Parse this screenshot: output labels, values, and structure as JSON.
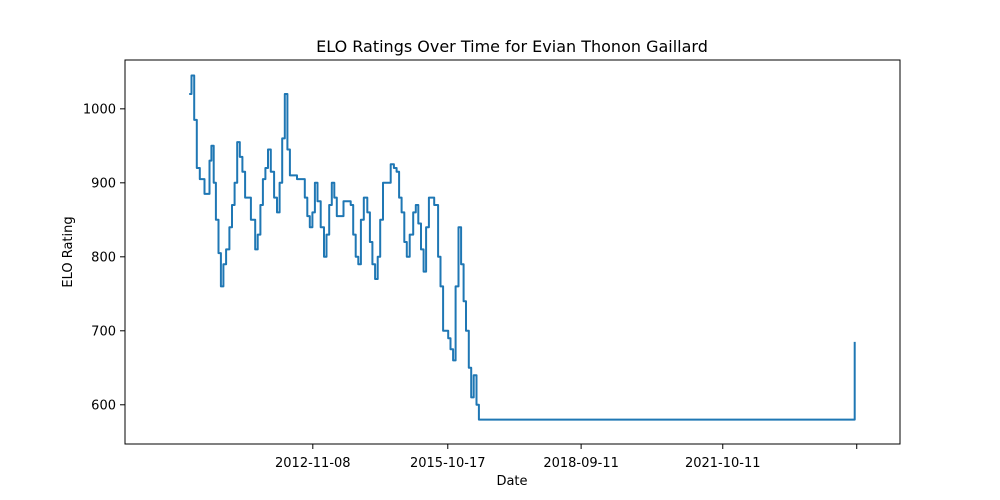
{
  "chart_data": {
    "type": "line",
    "title": "ELO Ratings Over Time for Evian Thonon Gaillard",
    "xlabel": "Date",
    "ylabel": "ELO Rating",
    "x_tick_labels": [
      "2012-11-08",
      "2015-10-17",
      "2018-09-11",
      "2021-10-11",
      ""
    ],
    "x_ticks": [
      "2012-11-08",
      "2015-10-17",
      "2018-09-11",
      "2021-10-11",
      "2024-09-10"
    ],
    "xlim": [
      "2008-10-07",
      "2025-08-20"
    ],
    "y_ticks": [
      600,
      700,
      800,
      900,
      1000
    ],
    "ylim": [
      547,
      1066
    ],
    "grid": false,
    "line_color": "#1f77b4",
    "series": [
      {
        "x": [
          "2010-03-01",
          "2010-03-20",
          "2010-04-10",
          "2010-05-01",
          "2010-05-25",
          "2010-07-01",
          "2010-08-10",
          "2010-08-25",
          "2010-09-12",
          "2010-09-30",
          "2010-10-20",
          "2010-11-08",
          "2010-11-28",
          "2010-12-20",
          "2011-01-15",
          "2011-02-05",
          "2011-02-25",
          "2011-03-18",
          "2011-04-08",
          "2011-04-28",
          "2011-05-20",
          "2011-07-05",
          "2011-08-08",
          "2011-08-28",
          "2011-09-18",
          "2011-10-08",
          "2011-10-28",
          "2011-11-18",
          "2011-12-10",
          "2012-01-05",
          "2012-01-28",
          "2012-02-18",
          "2012-03-10",
          "2012-03-30",
          "2012-04-20",
          "2012-05-10",
          "2012-07-05",
          "2012-08-18",
          "2012-09-05",
          "2012-09-25",
          "2012-10-15",
          "2012-11-05",
          "2012-11-25",
          "2012-12-15",
          "2013-01-10",
          "2013-02-05",
          "2013-02-25",
          "2013-03-18",
          "2013-04-08",
          "2013-04-28",
          "2013-05-18",
          "2013-07-10",
          "2013-08-15",
          "2013-09-05",
          "2013-09-25",
          "2013-10-15",
          "2013-11-05",
          "2013-11-25",
          "2013-12-18",
          "2014-01-15",
          "2014-02-05",
          "2014-02-25",
          "2014-03-18",
          "2014-04-08",
          "2014-04-28",
          "2014-05-20",
          "2014-07-20",
          "2014-08-15",
          "2014-09-05",
          "2014-09-25",
          "2014-10-15",
          "2014-11-05",
          "2014-11-25",
          "2014-12-18",
          "2015-01-15",
          "2015-02-05",
          "2015-02-25",
          "2015-03-18",
          "2015-04-08",
          "2015-04-28",
          "2015-05-20",
          "2015-07-01",
          "2015-08-01",
          "2015-08-20",
          "2015-09-10",
          "2015-10-01",
          "2015-10-20",
          "2015-11-08",
          "2015-11-28",
          "2015-12-18",
          "2016-01-10",
          "2016-01-31",
          "2016-02-20",
          "2016-03-10",
          "2016-04-01",
          "2016-04-20",
          "2016-05-10",
          "2016-06-01",
          "2016-06-20",
          "2024-08-25"
        ],
        "y": [
          1020,
          1045,
          985,
          920,
          905,
          885,
          930,
          950,
          900,
          850,
          805,
          760,
          790,
          810,
          840,
          870,
          900,
          955,
          935,
          915,
          880,
          850,
          810,
          830,
          870,
          905,
          920,
          945,
          915,
          880,
          860,
          900,
          960,
          1020,
          945,
          910,
          905,
          905,
          880,
          855,
          840,
          860,
          900,
          875,
          840,
          800,
          830,
          870,
          900,
          880,
          855,
          875,
          875,
          870,
          830,
          800,
          790,
          850,
          880,
          860,
          820,
          790,
          770,
          800,
          850,
          900,
          925,
          920,
          915,
          880,
          860,
          820,
          800,
          830,
          860,
          870,
          845,
          810,
          780,
          840,
          880,
          870,
          800,
          760,
          700,
          700,
          690,
          675,
          660,
          760,
          840,
          790,
          740,
          700,
          650,
          610,
          640,
          600,
          580,
          685
        ],
        "name": ""
      }
    ]
  }
}
